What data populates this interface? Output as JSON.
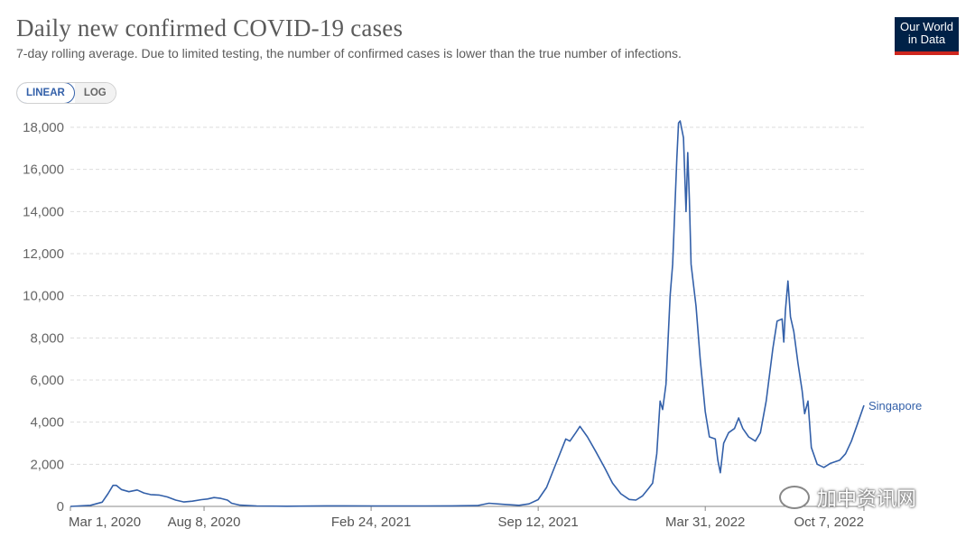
{
  "header": {
    "title": "Daily new confirmed COVID-19 cases",
    "subtitle": "7-day rolling average. Due to limited testing, the number of confirmed cases is lower than the true number of infections."
  },
  "logo": {
    "line1": "Our World",
    "line2": "in Data",
    "colors": {
      "bg": "#002147",
      "accent": "#ce261e"
    }
  },
  "scale_toggle": {
    "options": [
      "LINEAR",
      "LOG"
    ],
    "selected": "LINEAR"
  },
  "watermark": {
    "text": "加中资讯网",
    "icon": "wechat-icon"
  },
  "chart_data": {
    "type": "line",
    "title": "Daily new confirmed COVID-19 cases",
    "subtitle": "7-day rolling average. Due to limited testing, the number of confirmed cases is lower than the true number of infections.",
    "x_tick_labels": [
      "Mar 1, 2020",
      "Aug 8, 2020",
      "Feb 24, 2021",
      "Sep 12, 2021",
      "Mar 31, 2022",
      "Oct 7, 2022"
    ],
    "x_ticks": [
      "2020-03-01",
      "2020-08-08",
      "2021-02-24",
      "2021-09-12",
      "2022-03-31",
      "2022-10-07"
    ],
    "y_tick_labels": [
      "0",
      "2,000",
      "4,000",
      "6,000",
      "8,000",
      "10,000",
      "12,000",
      "14,000",
      "16,000",
      "18,000"
    ],
    "y_ticks": [
      0,
      2000,
      4000,
      6000,
      8000,
      10000,
      12000,
      14000,
      16000,
      18000
    ],
    "xlim": [
      "2020-03-01",
      "2022-10-07"
    ],
    "ylim": [
      0,
      18000
    ],
    "grid": "horizontal dashed",
    "legend": "inline label at end of line",
    "color": "#3360a9",
    "series": [
      {
        "name": "Singapore",
        "points": [
          [
            "2020-03-01",
            0
          ],
          [
            "2020-03-25",
            50
          ],
          [
            "2020-04-08",
            200
          ],
          [
            "2020-04-15",
            600
          ],
          [
            "2020-04-21",
            1000
          ],
          [
            "2020-04-25",
            1000
          ],
          [
            "2020-05-01",
            800
          ],
          [
            "2020-05-10",
            700
          ],
          [
            "2020-05-20",
            780
          ],
          [
            "2020-05-28",
            640
          ],
          [
            "2020-06-05",
            560
          ],
          [
            "2020-06-15",
            540
          ],
          [
            "2020-06-25",
            450
          ],
          [
            "2020-07-05",
            300
          ],
          [
            "2020-07-15",
            210
          ],
          [
            "2020-07-25",
            250
          ],
          [
            "2020-08-05",
            320
          ],
          [
            "2020-08-12",
            350
          ],
          [
            "2020-08-20",
            420
          ],
          [
            "2020-08-28",
            380
          ],
          [
            "2020-09-05",
            300
          ],
          [
            "2020-09-10",
            150
          ],
          [
            "2020-09-20",
            60
          ],
          [
            "2020-10-10",
            20
          ],
          [
            "2020-11-15",
            10
          ],
          [
            "2021-01-01",
            25
          ],
          [
            "2021-03-01",
            20
          ],
          [
            "2021-05-01",
            20
          ],
          [
            "2021-06-01",
            25
          ],
          [
            "2021-07-01",
            40
          ],
          [
            "2021-07-15",
            150
          ],
          [
            "2021-08-01",
            100
          ],
          [
            "2021-08-20",
            50
          ],
          [
            "2021-09-01",
            120
          ],
          [
            "2021-09-12",
            320
          ],
          [
            "2021-09-22",
            900
          ],
          [
            "2021-10-01",
            1800
          ],
          [
            "2021-10-15",
            3200
          ],
          [
            "2021-10-20",
            3100
          ],
          [
            "2021-10-27",
            3500
          ],
          [
            "2021-11-01",
            3800
          ],
          [
            "2021-11-10",
            3300
          ],
          [
            "2021-11-20",
            2600
          ],
          [
            "2021-12-01",
            1800
          ],
          [
            "2021-12-10",
            1100
          ],
          [
            "2021-12-20",
            600
          ],
          [
            "2021-12-30",
            330
          ],
          [
            "2022-01-07",
            300
          ],
          [
            "2022-01-15",
            500
          ],
          [
            "2022-01-22",
            850
          ],
          [
            "2022-01-27",
            1100
          ],
          [
            "2022-02-01",
            2500
          ],
          [
            "2022-02-05",
            5000
          ],
          [
            "2022-02-08",
            4600
          ],
          [
            "2022-02-12",
            5800
          ],
          [
            "2022-02-17",
            10000
          ],
          [
            "2022-02-20",
            11500
          ],
          [
            "2022-02-25",
            16500
          ],
          [
            "2022-02-27",
            18200
          ],
          [
            "2022-03-01",
            18300
          ],
          [
            "2022-03-05",
            17500
          ],
          [
            "2022-03-08",
            14000
          ],
          [
            "2022-03-10",
            16800
          ],
          [
            "2022-03-12",
            14600
          ],
          [
            "2022-03-14",
            11500
          ],
          [
            "2022-03-20",
            9500
          ],
          [
            "2022-03-25",
            7000
          ],
          [
            "2022-03-31",
            4500
          ],
          [
            "2022-04-05",
            3300
          ],
          [
            "2022-04-12",
            3200
          ],
          [
            "2022-04-15",
            2200
          ],
          [
            "2022-04-18",
            1600
          ],
          [
            "2022-04-22",
            3000
          ],
          [
            "2022-04-28",
            3500
          ],
          [
            "2022-05-05",
            3700
          ],
          [
            "2022-05-10",
            4200
          ],
          [
            "2022-05-15",
            3700
          ],
          [
            "2022-05-22",
            3300
          ],
          [
            "2022-05-30",
            3100
          ],
          [
            "2022-06-05",
            3500
          ],
          [
            "2022-06-12",
            5000
          ],
          [
            "2022-06-20",
            7500
          ],
          [
            "2022-06-25",
            8800
          ],
          [
            "2022-07-01",
            8900
          ],
          [
            "2022-07-03",
            7800
          ],
          [
            "2022-07-05",
            9300
          ],
          [
            "2022-07-08",
            10700
          ],
          [
            "2022-07-11",
            9000
          ],
          [
            "2022-07-15",
            8300
          ],
          [
            "2022-07-20",
            6800
          ],
          [
            "2022-07-25",
            5500
          ],
          [
            "2022-07-28",
            4400
          ],
          [
            "2022-08-01",
            5000
          ],
          [
            "2022-08-05",
            2800
          ],
          [
            "2022-08-12",
            2000
          ],
          [
            "2022-08-20",
            1850
          ],
          [
            "2022-08-28",
            2050
          ],
          [
            "2022-09-08",
            2200
          ],
          [
            "2022-09-15",
            2500
          ],
          [
            "2022-09-22",
            3100
          ],
          [
            "2022-09-30",
            4000
          ],
          [
            "2022-10-07",
            4800
          ]
        ]
      }
    ]
  }
}
